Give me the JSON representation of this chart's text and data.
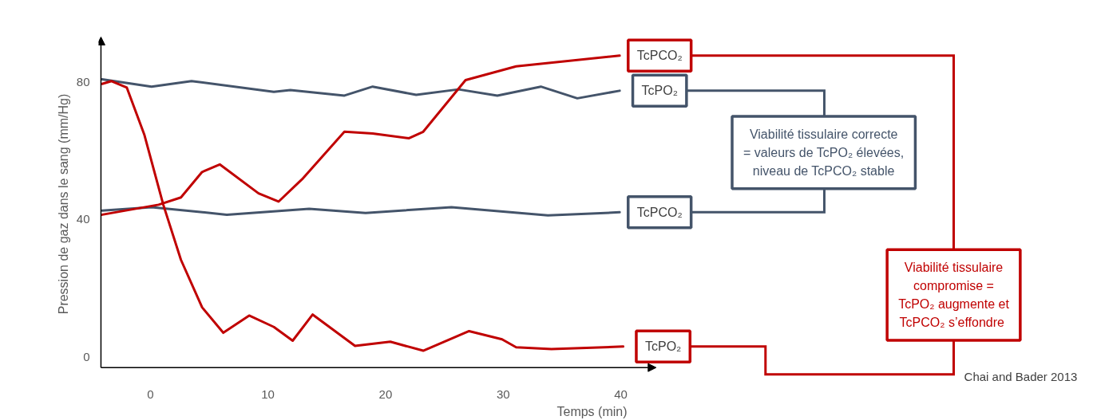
{
  "chart_data": {
    "type": "line",
    "xlabel": "Temps (min)",
    "ylabel": "Pression de gaz dans le sang (mm/Hg)",
    "xlim": [
      -4.2,
      43
    ],
    "ylim": [
      -3,
      93
    ],
    "xticks": [
      0,
      10,
      20,
      30,
      40
    ],
    "yticks": [
      0,
      40,
      80
    ],
    "grid": false,
    "legend": false,
    "marker": "none",
    "line_style": "solid",
    "series": [
      {
        "name": "TcPO₂",
        "color": "#44546a",
        "x": [
          -4.1,
          0.1,
          3.5,
          10.5,
          11.9,
          16.5,
          18.9,
          22.6,
          26.2,
          29.5,
          33.2,
          36.3,
          39.9
        ],
        "values": [
          80.7,
          78.6,
          80.2,
          77.1,
          77.6,
          76,
          78.6,
          76.2,
          77.8,
          76,
          78.6,
          75.2,
          77.4
        ]
      },
      {
        "name": "TcPCO₂",
        "color": "#44546a",
        "x": [
          -4.1,
          0.1,
          6.5,
          13.5,
          18.3,
          25.6,
          33.8,
          39.9
        ],
        "values": [
          42.6,
          43.6,
          41.4,
          43.1,
          41.9,
          43.6,
          41.2,
          42.1
        ]
      },
      {
        "name": "TcPCO₂",
        "color": "#c00000",
        "x": [
          -4.1,
          0.7,
          2.6,
          4.4,
          5.9,
          9.2,
          10.9,
          12.9,
          16.5,
          18.9,
          22,
          23.2,
          26.8,
          31.1,
          39.9
        ],
        "values": [
          41.4,
          44.3,
          46.4,
          53.8,
          56,
          47.6,
          45.2,
          51.7,
          65.5,
          65,
          63.6,
          65.5,
          80.5,
          84.5,
          87.6
        ]
      },
      {
        "name": "TcPO₂",
        "color": "#c00000",
        "x": [
          -4.1,
          -3.3,
          -2,
          -0.5,
          1.1,
          2.6,
          4.4,
          6.2,
          8.4,
          10.5,
          12.1,
          13.8,
          17.4,
          20.4,
          23.2,
          27.1,
          29.9,
          31.1,
          34.1,
          40.2
        ],
        "values": [
          79.4,
          80.2,
          78.3,
          64.5,
          44.3,
          28.3,
          14.5,
          7.1,
          12.1,
          8.8,
          4.8,
          12.4,
          3.3,
          4.5,
          1.9,
          7.6,
          5.2,
          2.9,
          2.4,
          3.1
        ]
      }
    ],
    "annotations": [
      "Viabilité tissulaire correcte\n= valeurs de TcPO₂ élevées,\nniveau de TcPCO₂ stable",
      "Viabilité tissulaire\ncompromise =\nTcPO₂ augmente et\nTcPCO₂  s’effondre",
      "Chai and Bader 2013"
    ]
  }
}
